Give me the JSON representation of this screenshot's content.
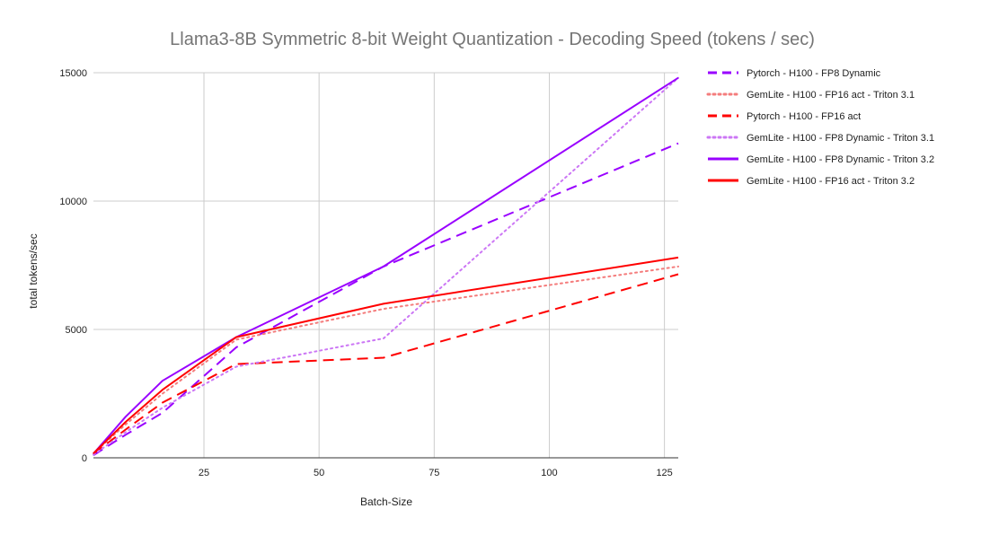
{
  "chart_data": {
    "type": "line",
    "title": "Llama3-8B Symmetric 8-bit Weight Quantization - Decoding Speed (tokens / sec)",
    "xlabel": "Batch-Size",
    "ylabel": "total tokens/sec",
    "xlim": [
      1,
      128
    ],
    "ylim": [
      0,
      15000
    ],
    "xticks": [
      25,
      50,
      75,
      100,
      125
    ],
    "yticks": [
      0,
      5000,
      10000,
      15000
    ],
    "grid": true,
    "legend_position": "right",
    "x": [
      1,
      8,
      16,
      32,
      64,
      128
    ],
    "series": [
      {
        "name": "Pytorch - H100 - FP8 Dynamic",
        "color": "#9900ff",
        "style": "dashed",
        "values": [
          100,
          900,
          1750,
          4300,
          7450,
          12250
        ]
      },
      {
        "name": "GemLite - H100 - FP16 act - Triton 3.1",
        "color": "#f47c7c",
        "style": "dotted",
        "values": [
          170,
          1300,
          2500,
          4600,
          5800,
          7450
        ]
      },
      {
        "name": "Pytorch - H100 - FP16 act",
        "color": "#ff0000",
        "style": "dashed",
        "values": [
          160,
          1100,
          2150,
          3650,
          3900,
          7150
        ]
      },
      {
        "name": "GemLite - H100 - FP8 Dynamic - Triton 3.1",
        "color": "#cc77f5",
        "style": "dotted",
        "values": [
          120,
          1000,
          1950,
          3550,
          4650,
          14800
        ]
      },
      {
        "name": "GemLite - H100 - FP8 Dynamic - Triton 3.2",
        "color": "#9900ff",
        "style": "solid",
        "values": [
          160,
          1600,
          3000,
          4700,
          7450,
          14800
        ]
      },
      {
        "name": "GemLite - H100 - FP16 act - Triton 3.2",
        "color": "#ff0000",
        "style": "solid",
        "values": [
          170,
          1400,
          2650,
          4700,
          6000,
          7800
        ]
      }
    ]
  }
}
